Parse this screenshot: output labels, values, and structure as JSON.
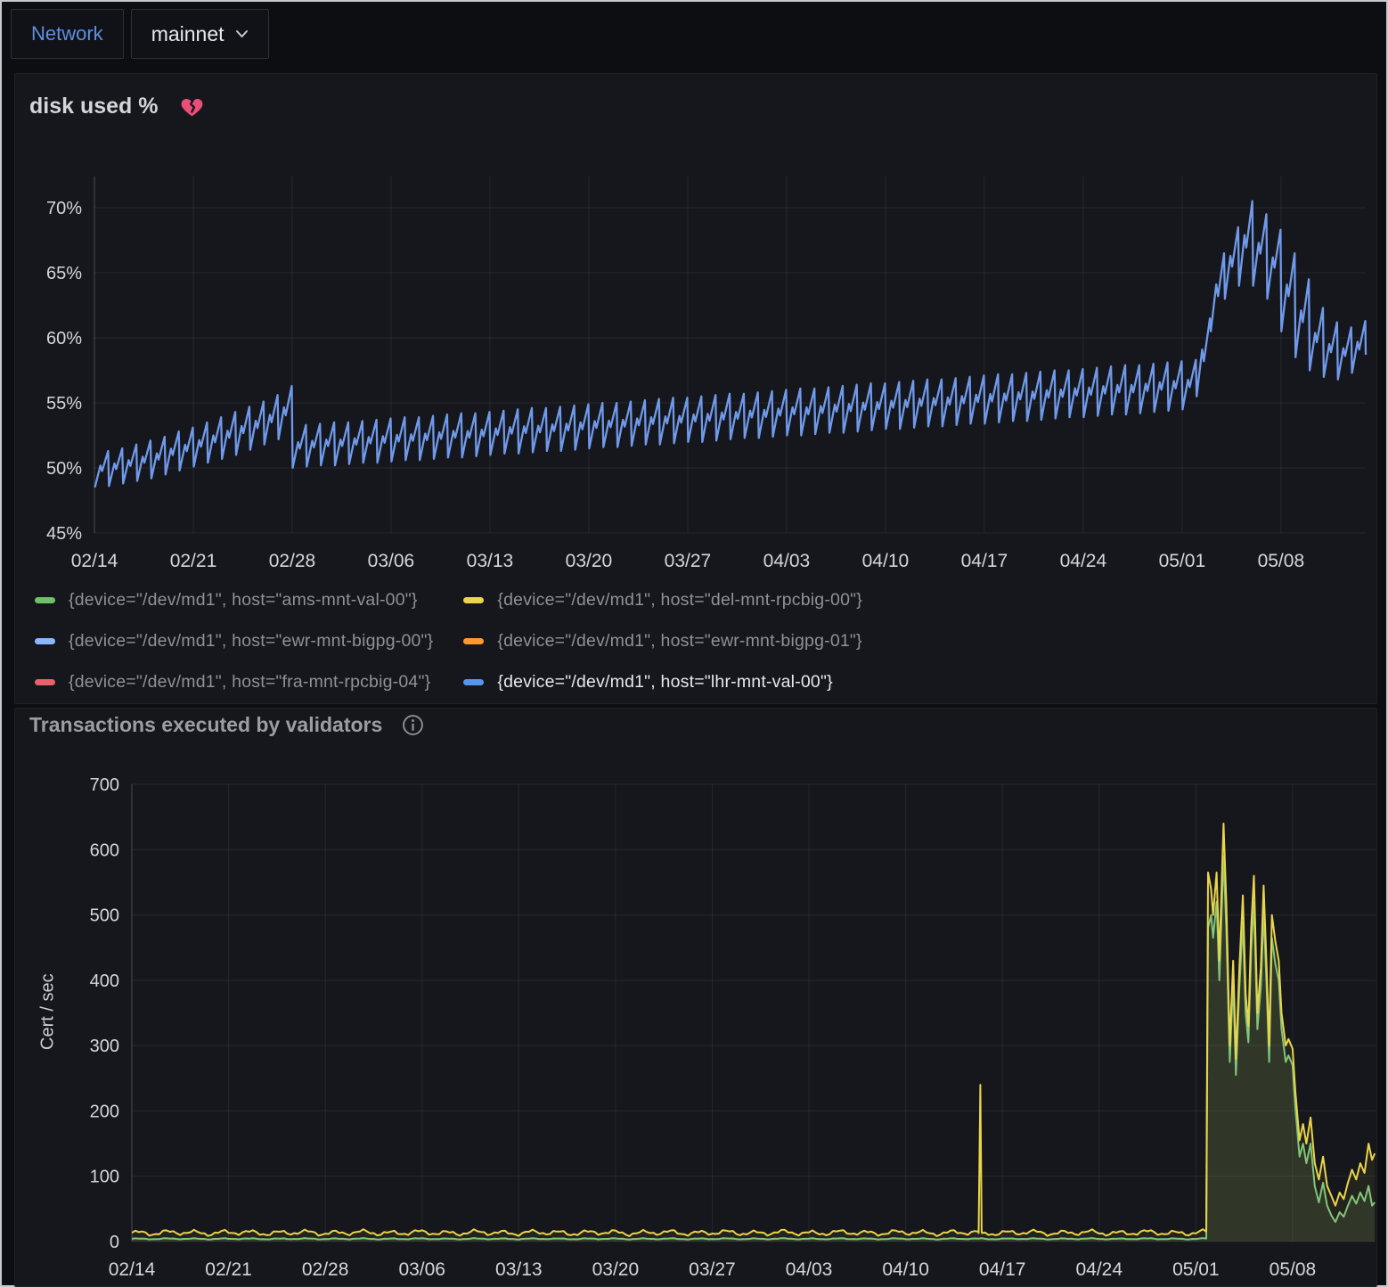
{
  "header": {
    "variable_label": "Network",
    "variable_value": "mainnet",
    "variable_label_color": "#5f8fdf"
  },
  "panel1": {
    "title": "disk used %",
    "broken_heart_color": "#ea4f78",
    "legend": [
      {
        "label": "{device=\"/dev/md1\", host=\"ams-mnt-val-00\"}",
        "color": "#73BF69",
        "highlighted": false
      },
      {
        "label": "{device=\"/dev/md1\", host=\"del-mnt-rpcbig-00\"}",
        "color": "#EBD54B",
        "highlighted": false
      },
      {
        "label": "{device=\"/dev/md1\", host=\"ewr-mnt-bigpg-00\"}",
        "color": "#8AB8FF",
        "highlighted": false
      },
      {
        "label": "{device=\"/dev/md1\", host=\"ewr-mnt-bigpg-01\"}",
        "color": "#FF9830",
        "highlighted": false
      },
      {
        "label": "{device=\"/dev/md1\", host=\"fra-mnt-rpcbig-04\"}",
        "color": "#E95F6A",
        "highlighted": false
      },
      {
        "label": "{device=\"/dev/md1\", host=\"lhr-mnt-val-00\"}",
        "color": "#5794F2",
        "highlighted": true
      }
    ]
  },
  "panel2": {
    "title": "Transactions executed by validators"
  },
  "chart_data": [
    {
      "type": "line",
      "title": "disk used %",
      "unit": "%",
      "legend_position": "bottom",
      "grid": true,
      "visible_series": "{device=\"/dev/md1\", host=\"lhr-mnt-val-00\"}",
      "color": "#6f99ea",
      "x_axis": {
        "tick_labels": [
          "02/14",
          "02/21",
          "02/28",
          "03/06",
          "03/13",
          "03/20",
          "03/27",
          "04/03",
          "04/10",
          "04/17",
          "04/24",
          "05/01",
          "05/08"
        ],
        "tick_day_offsets": [
          0,
          7,
          14,
          21,
          28,
          35,
          42,
          49,
          56,
          63,
          70,
          77,
          84
        ],
        "total_days": 90
      },
      "y_axis": {
        "min": 45,
        "max": 72.4,
        "tick_values": [
          45,
          50,
          55,
          60,
          65,
          70
        ],
        "tick_labels": [
          "45%",
          "50%",
          "55%",
          "60%",
          "65%",
          "70%"
        ]
      },
      "pattern": "daily sawtooth (disk fills then is compacted once per day)",
      "daily_low": [
        48.5,
        48.6,
        48.8,
        49.0,
        49.2,
        49.5,
        49.8,
        50.1,
        50.4,
        50.7,
        51.0,
        51.4,
        51.8,
        52.2,
        50.0,
        50.1,
        50.2,
        50.2,
        50.3,
        50.4,
        50.4,
        50.5,
        50.6,
        50.6,
        50.7,
        50.8,
        50.8,
        50.9,
        51.0,
        51.1,
        51.1,
        51.2,
        51.3,
        51.3,
        51.4,
        51.5,
        51.6,
        51.6,
        51.7,
        51.8,
        51.8,
        51.9,
        52.0,
        52.0,
        52.1,
        52.2,
        52.3,
        52.3,
        52.4,
        52.5,
        52.5,
        52.6,
        52.7,
        52.7,
        52.8,
        52.9,
        53.0,
        53.0,
        53.1,
        53.2,
        53.2,
        53.3,
        53.4,
        53.4,
        53.5,
        53.6,
        53.6,
        53.7,
        53.8,
        53.9,
        53.9,
        54.0,
        54.1,
        54.1,
        54.2,
        54.3,
        54.4,
        54.5,
        55.5,
        60.5,
        63.0,
        64.0,
        64.0,
        63.0,
        60.5,
        58.5,
        57.5,
        57.0,
        56.8,
        57.3
      ],
      "daily_high": [
        51.3,
        51.5,
        51.8,
        52.1,
        52.4,
        52.8,
        53.1,
        53.5,
        53.9,
        54.3,
        54.7,
        55.1,
        55.6,
        56.3,
        53.3,
        53.4,
        53.5,
        53.5,
        53.6,
        53.7,
        53.8,
        53.9,
        53.9,
        54.0,
        54.1,
        54.2,
        54.2,
        54.3,
        54.4,
        54.5,
        54.6,
        54.6,
        54.7,
        54.8,
        54.9,
        55.0,
        55.0,
        55.1,
        55.2,
        55.3,
        55.4,
        55.4,
        55.5,
        55.6,
        55.7,
        55.7,
        55.8,
        55.9,
        56.0,
        56.1,
        56.1,
        56.2,
        56.3,
        56.4,
        56.5,
        56.5,
        56.6,
        56.7,
        56.8,
        56.8,
        56.9,
        57.0,
        57.1,
        57.2,
        57.2,
        57.3,
        57.4,
        57.5,
        57.5,
        57.6,
        57.7,
        57.8,
        57.9,
        57.9,
        58.0,
        58.1,
        58.2,
        58.3,
        61.5,
        66.5,
        68.5,
        70.5,
        69.5,
        68.3,
        66.5,
        64.5,
        62.3,
        61.2,
        60.8,
        61.3
      ],
      "final_value": 58.7
    },
    {
      "type": "line",
      "title": "Transactions executed by validators",
      "ylabel": "Cert / sec",
      "grid": true,
      "x_axis": {
        "tick_labels": [
          "02/14",
          "02/21",
          "02/28",
          "03/06",
          "03/13",
          "03/20",
          "03/27",
          "04/03",
          "04/10",
          "04/17",
          "04/24",
          "05/01",
          "05/08"
        ],
        "tick_day_offsets": [
          0,
          7,
          14,
          21,
          28,
          35,
          42,
          49,
          56,
          63,
          70,
          77,
          84
        ],
        "total_days": 90
      },
      "y_axis": {
        "min": 0,
        "max": 700,
        "tick_values": [
          0,
          100,
          200,
          300,
          400,
          500,
          600,
          700
        ],
        "tick_labels": [
          "0",
          "100",
          "200",
          "300",
          "400",
          "500",
          "600",
          "700"
        ]
      },
      "series": [
        {
          "name": "ams-mnt-val-00",
          "color": "#82c579",
          "fill_opacity": 0.12,
          "baseline": {
            "from": 0,
            "to": 77.82,
            "value": 4.2,
            "noise": 1.2
          },
          "points": [
            [
              77.88,
              480
            ],
            [
              78.1,
              500
            ],
            [
              78.25,
              465
            ],
            [
              78.5,
              520
            ],
            [
              78.7,
              400
            ],
            [
              79.0,
              590
            ],
            [
              79.2,
              480
            ],
            [
              79.45,
              275
            ],
            [
              79.7,
              400
            ],
            [
              79.9,
              255
            ],
            [
              80.15,
              390
            ],
            [
              80.4,
              490
            ],
            [
              80.6,
              350
            ],
            [
              80.8,
              305
            ],
            [
              81.0,
              445
            ],
            [
              81.2,
              520
            ],
            [
              81.45,
              325
            ],
            [
              81.7,
              390
            ],
            [
              81.9,
              505
            ],
            [
              82.1,
              400
            ],
            [
              82.3,
              275
            ],
            [
              82.5,
              465
            ],
            [
              82.75,
              425
            ],
            [
              83.0,
              400
            ],
            [
              83.2,
              325
            ],
            [
              83.5,
              275
            ],
            [
              83.7,
              285
            ],
            [
              84.0,
              270
            ],
            [
              84.2,
              205
            ],
            [
              84.5,
              130
            ],
            [
              84.75,
              150
            ],
            [
              85.0,
              120
            ],
            [
              85.3,
              150
            ],
            [
              85.6,
              85
            ],
            [
              85.9,
              60
            ],
            [
              86.2,
              90
            ],
            [
              86.5,
              55
            ],
            [
              86.8,
              40
            ],
            [
              87.1,
              30
            ],
            [
              87.4,
              45
            ],
            [
              87.7,
              38
            ],
            [
              88.0,
              55
            ],
            [
              88.3,
              70
            ],
            [
              88.6,
              58
            ],
            [
              88.9,
              75
            ],
            [
              89.2,
              62
            ],
            [
              89.5,
              85
            ],
            [
              89.75,
              55
            ],
            [
              89.95,
              60
            ]
          ]
        },
        {
          "name": "del-mnt-rpcbig-00",
          "color": "#e9d44a",
          "fill_opacity": 0.07,
          "baseline": {
            "from": 0,
            "to": 77.82,
            "value": 13.5,
            "noise": 5.5
          },
          "spike": [
            [
              61.28,
              13
            ],
            [
              61.4,
              240
            ],
            [
              61.52,
              13
            ]
          ],
          "points": [
            [
              77.88,
              565
            ],
            [
              78.1,
              540
            ],
            [
              78.25,
              500
            ],
            [
              78.5,
              565
            ],
            [
              78.7,
              430
            ],
            [
              79.0,
              640
            ],
            [
              79.2,
              520
            ],
            [
              79.45,
              300
            ],
            [
              79.7,
              430
            ],
            [
              79.9,
              280
            ],
            [
              80.15,
              420
            ],
            [
              80.4,
              530
            ],
            [
              80.6,
              380
            ],
            [
              80.8,
              330
            ],
            [
              81.0,
              480
            ],
            [
              81.2,
              560
            ],
            [
              81.45,
              350
            ],
            [
              81.7,
              420
            ],
            [
              81.9,
              545
            ],
            [
              82.1,
              430
            ],
            [
              82.3,
              300
            ],
            [
              82.5,
              500
            ],
            [
              82.75,
              460
            ],
            [
              83.0,
              430
            ],
            [
              83.2,
              350
            ],
            [
              83.5,
              300
            ],
            [
              83.7,
              310
            ],
            [
              84.0,
              295
            ],
            [
              84.2,
              230
            ],
            [
              84.5,
              155
            ],
            [
              84.75,
              180
            ],
            [
              85.0,
              150
            ],
            [
              85.3,
              190
            ],
            [
              85.6,
              120
            ],
            [
              85.9,
              95
            ],
            [
              86.2,
              130
            ],
            [
              86.5,
              85
            ],
            [
              86.8,
              70
            ],
            [
              87.1,
              55
            ],
            [
              87.4,
              75
            ],
            [
              87.7,
              65
            ],
            [
              88.0,
              90
            ],
            [
              88.3,
              110
            ],
            [
              88.6,
              95
            ],
            [
              88.9,
              120
            ],
            [
              89.2,
              105
            ],
            [
              89.5,
              150
            ],
            [
              89.75,
              125
            ],
            [
              89.95,
              135
            ]
          ]
        }
      ]
    }
  ]
}
